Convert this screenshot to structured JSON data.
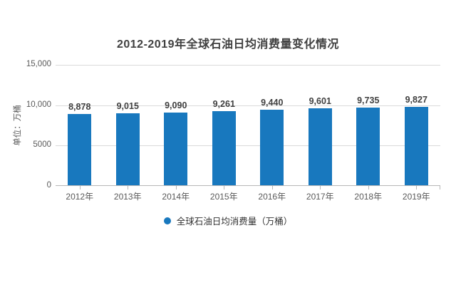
{
  "title": "2012-2019年全球石油日均消费量变化情况",
  "y_axis_title": "单位：万桶",
  "legend": {
    "label": "全球石油日均消费量（万桶）"
  },
  "colors": {
    "bar": "#1878be",
    "gridline": "#d9d9d9",
    "axis": "#b7b7b7",
    "title_text": "#404040",
    "tick_text": "#595959"
  },
  "chart_data": {
    "type": "bar",
    "title": "2012-2019年全球石油日均消费量变化情况",
    "categories": [
      "2012年",
      "2013年",
      "2014年",
      "2015年",
      "2016年",
      "2017年",
      "2018年",
      "2019年"
    ],
    "values": [
      8878,
      9015,
      9090,
      9261,
      9440,
      9601,
      9735,
      9827
    ],
    "data_labels": [
      "8,878",
      "9,015",
      "9,090",
      "9,261",
      "9,440",
      "9,601",
      "9,735",
      "9,827"
    ],
    "xlabel": "",
    "ylabel": "单位：万桶",
    "ylim": [
      0,
      15000
    ],
    "yticks": [
      {
        "value": 0,
        "label": "0"
      },
      {
        "value": 5000,
        "label": "5000"
      },
      {
        "value": 10000,
        "label": "10,000"
      },
      {
        "value": 15000,
        "label": "15,000"
      }
    ],
    "grid": "horizontal",
    "legend_position": "bottom",
    "legend_entries": [
      "全球石油日均消费量（万桶）"
    ],
    "bar_color": "#1878be"
  }
}
